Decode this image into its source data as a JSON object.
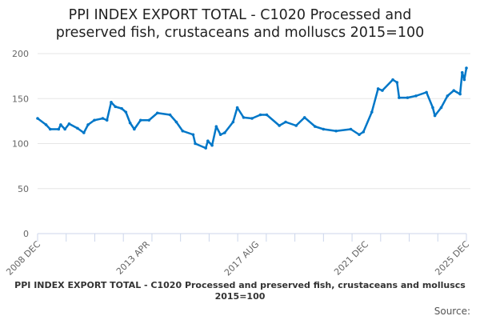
{
  "chart_data": {
    "type": "line",
    "title_line1": "PPI INDEX EXPORT TOTAL - C1020 Processed and",
    "title_line2": "preserved fish, crustaceans and molluscs 2015=100",
    "series_name": "PPI INDEX EXPORT TOTAL - C1020 Processed and preserved fish, crustaceans and molluscs 2015=100",
    "source_label": "Source:",
    "ylim": [
      0,
      200
    ],
    "yticks": [
      "0",
      "50",
      "100",
      "150",
      "200"
    ],
    "xtick_labels": [
      "2008 DEC",
      "2013 APR",
      "2017 AUG",
      "2021 DEC",
      "2025 DEC"
    ],
    "xrange": [
      "2008-12",
      "2025-12"
    ],
    "grid": true,
    "line_color": "#0077c8",
    "points": [
      [
        "2008-12",
        128
      ],
      [
        "2009-04",
        121
      ],
      [
        "2009-06",
        116
      ],
      [
        "2009-10",
        116
      ],
      [
        "2009-11",
        121
      ],
      [
        "2010-01",
        116
      ],
      [
        "2010-03",
        122
      ],
      [
        "2010-07",
        117
      ],
      [
        "2010-10",
        112
      ],
      [
        "2010-12",
        121
      ],
      [
        "2011-03",
        126
      ],
      [
        "2011-07",
        128
      ],
      [
        "2011-09",
        126
      ],
      [
        "2011-11",
        146
      ],
      [
        "2012-01",
        141
      ],
      [
        "2012-04",
        139
      ],
      [
        "2012-06",
        135
      ],
      [
        "2012-08",
        123
      ],
      [
        "2012-10",
        116
      ],
      [
        "2013-01",
        126
      ],
      [
        "2013-05",
        126
      ],
      [
        "2013-09",
        134
      ],
      [
        "2014-03",
        132
      ],
      [
        "2014-06",
        124
      ],
      [
        "2014-09",
        114
      ],
      [
        "2015-02",
        110
      ],
      [
        "2015-03",
        100
      ],
      [
        "2015-08",
        95
      ],
      [
        "2015-09",
        103
      ],
      [
        "2015-11",
        98
      ],
      [
        "2016-01",
        119
      ],
      [
        "2016-03",
        110
      ],
      [
        "2016-05",
        112
      ],
      [
        "2016-09",
        124
      ],
      [
        "2016-11",
        140
      ],
      [
        "2017-02",
        129
      ],
      [
        "2017-06",
        128
      ],
      [
        "2017-10",
        132
      ],
      [
        "2018-01",
        132
      ],
      [
        "2018-07",
        120
      ],
      [
        "2018-10",
        124
      ],
      [
        "2019-03",
        120
      ],
      [
        "2019-07",
        129
      ],
      [
        "2019-12",
        119
      ],
      [
        "2020-04",
        116
      ],
      [
        "2020-10",
        114
      ],
      [
        "2021-05",
        116
      ],
      [
        "2021-09",
        110
      ],
      [
        "2021-11",
        113
      ],
      [
        "2022-03",
        135
      ],
      [
        "2022-06",
        161
      ],
      [
        "2022-08",
        159
      ],
      [
        "2023-01",
        171
      ],
      [
        "2023-03",
        168
      ],
      [
        "2023-04",
        151
      ],
      [
        "2023-08",
        151
      ],
      [
        "2023-12",
        153
      ],
      [
        "2024-05",
        157
      ],
      [
        "2024-08",
        140
      ],
      [
        "2024-09",
        131
      ],
      [
        "2024-12",
        140
      ],
      [
        "2025-03",
        153
      ],
      [
        "2025-06",
        159
      ],
      [
        "2025-09",
        155
      ],
      [
        "2025-10",
        179
      ],
      [
        "2025-11",
        171
      ],
      [
        "2025-12",
        184
      ]
    ]
  }
}
